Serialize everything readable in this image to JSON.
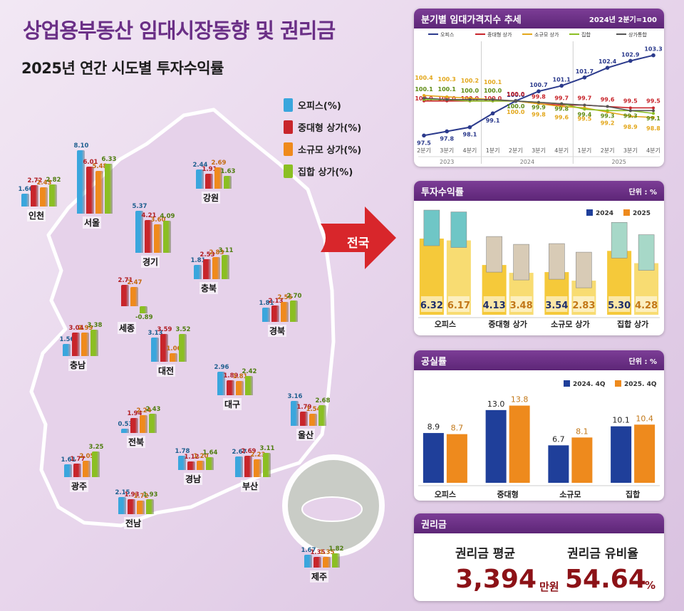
{
  "title": "상업용부동산 임대시장동향 및 권리금",
  "subtitle": "2025년 연간 시도별 투자수익률",
  "legend": [
    {
      "label": "오피스(%)",
      "color": "#3aa6dd"
    },
    {
      "label": "중대형 상가(%)",
      "color": "#c8252b"
    },
    {
      "label": "소규모 상가(%)",
      "color": "#ef8a1c"
    },
    {
      "label": "집합 상가(%)",
      "color": "#8bbf23"
    }
  ],
  "nation_label": "전국",
  "regions": [
    {
      "name": "인천",
      "values": [
        1.66,
        2.72,
        2.43,
        2.82
      ]
    },
    {
      "name": "서울",
      "values": [
        8.1,
        6.01,
        5.48,
        6.33
      ]
    },
    {
      "name": "강원",
      "values": [
        2.44,
        1.91,
        2.69,
        1.63
      ]
    },
    {
      "name": "경기",
      "values": [
        5.37,
        4.21,
        3.6,
        4.09
      ]
    },
    {
      "name": "충북",
      "values": [
        1.81,
        2.53,
        2.83,
        3.11
      ]
    },
    {
      "name": "세종",
      "values": [
        2.71,
        2.47,
        -0.89
      ]
    },
    {
      "name": "충남",
      "values": [
        1.56,
        3.04,
        2.99,
        3.38
      ]
    },
    {
      "name": "대전",
      "values": [
        3.13,
        3.59,
        1.06,
        3.52
      ]
    },
    {
      "name": "경북",
      "values": [
        1.81,
        2.13,
        2.55,
        2.7
      ]
    },
    {
      "name": "대구",
      "values": [
        2.96,
        1.89,
        1.81,
        2.42
      ]
    },
    {
      "name": "전북",
      "values": [
        0.53,
        1.94,
        2.24,
        2.43
      ]
    },
    {
      "name": "울산",
      "values": [
        3.16,
        1.79,
        1.54,
        2.68
      ]
    },
    {
      "name": "광주",
      "values": [
        1.61,
        1.77,
        2.05,
        3.25
      ]
    },
    {
      "name": "경남",
      "values": [
        1.78,
        1.12,
        1.2,
        1.64
      ]
    },
    {
      "name": "부산",
      "values": [
        2.67,
        2.69,
        2.23,
        3.11
      ]
    },
    {
      "name": "전남",
      "values": [
        2.15,
        1.93,
        1.72,
        1.93
      ]
    },
    {
      "name": "제주",
      "values": [
        1.67,
        1.35,
        1.35,
        1.82
      ]
    }
  ],
  "chart_data": [
    {
      "type": "line",
      "title": "분기별 임대가격지수 추세",
      "note": "2024년 2분기=100",
      "x": [
        "2분기",
        "3분기",
        "4분기",
        "1분기",
        "2분기",
        "3분기",
        "4분기",
        "1분기",
        "2분기",
        "3분기",
        "4분기"
      ],
      "years": [
        "2023",
        "2024",
        "2025"
      ],
      "series": [
        {
          "name": "오피스",
          "color": "#2b3a8c",
          "values": [
            97.5,
            97.8,
            98.1,
            99.1,
            100.0,
            100.7,
            101.1,
            101.7,
            102.4,
            102.9,
            103.3
          ]
        },
        {
          "name": "중대형 상가",
          "color": "#c8252b",
          "values": [
            100.0,
            100.0,
            100.0,
            100.0,
            100.0,
            99.8,
            99.7,
            99.7,
            99.6,
            99.5,
            99.5
          ]
        },
        {
          "name": "소규모 상가",
          "color": "#e3a71b",
          "values": [
            100.4,
            100.3,
            100.2,
            100.1,
            100.0,
            99.8,
            99.6,
            99.5,
            99.2,
            98.9,
            98.8
          ]
        },
        {
          "name": "집합",
          "color": "#8bbf23",
          "values": [
            100.1,
            100.1,
            100.0,
            100.0,
            100.0,
            99.9,
            99.8,
            99.4,
            99.3,
            99.3,
            99.1
          ]
        },
        {
          "name": "상가통합",
          "color": "#555555",
          "values": [
            100.2,
            100.1,
            100.1,
            100.1,
            100.0,
            99.9,
            99.8,
            99.7,
            99.6,
            99.3,
            99.3
          ]
        }
      ]
    },
    {
      "type": "bar",
      "title": "투자수익률",
      "unit": "단위 : %",
      "categories": [
        "오피스",
        "중대형 상가",
        "소규모 상가",
        "집합 상가"
      ],
      "series": [
        {
          "name": "2024",
          "color": "#1f3f9a",
          "values": [
            6.32,
            4.13,
            3.54,
            5.3
          ]
        },
        {
          "name": "2025",
          "color": "#ee8a1d",
          "values": [
            6.17,
            3.48,
            2.83,
            4.28
          ]
        }
      ]
    },
    {
      "type": "bar",
      "title": "공실률",
      "unit": "단위 : %",
      "categories": [
        "오피스",
        "중대형",
        "소규모",
        "집합"
      ],
      "series": [
        {
          "name": "2024. 4Q",
          "color": "#1f3f9a",
          "values": [
            8.9,
            13.0,
            6.7,
            10.1
          ]
        },
        {
          "name": "2025. 4Q",
          "color": "#ee8a1d",
          "values": [
            8.7,
            13.8,
            8.1,
            10.4
          ]
        }
      ]
    }
  ],
  "rights": {
    "title": "권리금",
    "avg_label": "권리금 평균",
    "avg_value": "3,394",
    "avg_unit": "만원",
    "ratio_label": "권리금 유비율",
    "ratio_value": "54.64",
    "ratio_unit": "%"
  }
}
